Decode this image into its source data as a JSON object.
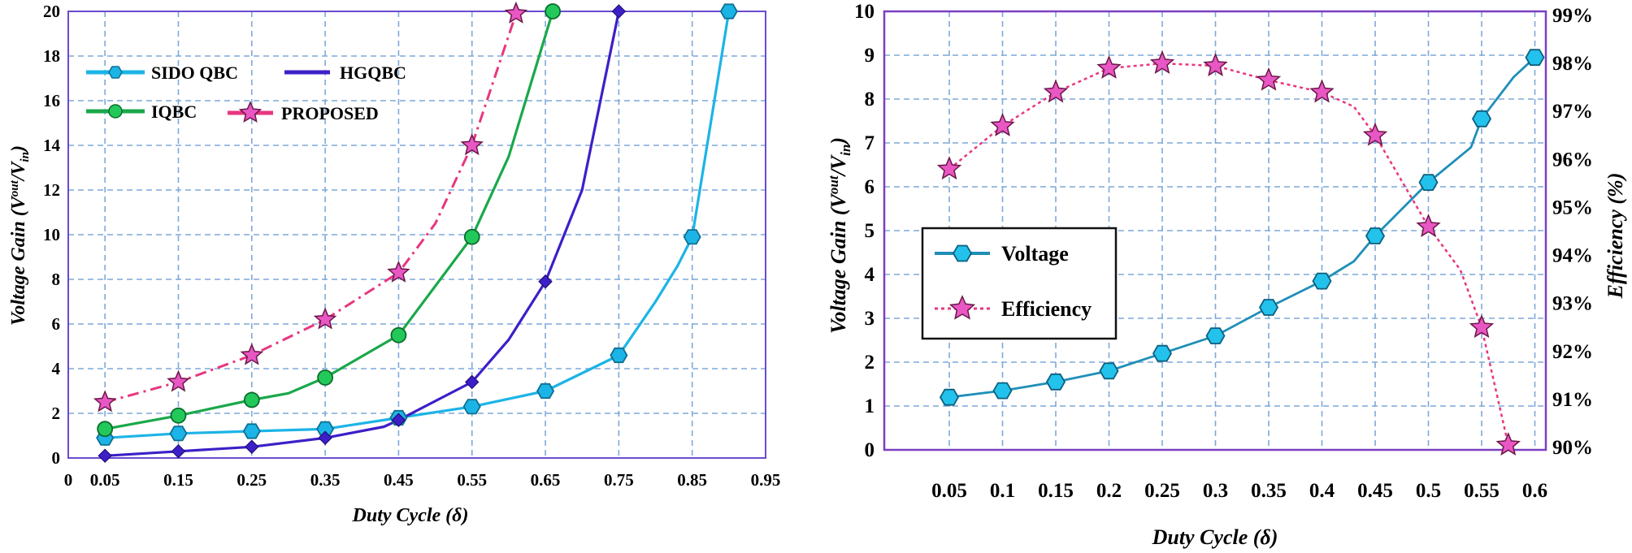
{
  "chart_data": [
    {
      "type": "line",
      "xlabel": "Duty Cycle (δ)",
      "ylabel": "Voltage Gain (V",
      "ylabel_sup": "out",
      "ylabel_sep": "/V",
      "ylabel_sub": "in",
      "ylabel_close": ")",
      "xlim": [
        0,
        0.95
      ],
      "ylim": [
        0,
        20
      ],
      "x_ticks": [
        0,
        0.05,
        0.15,
        0.25,
        0.35,
        0.45,
        0.55,
        0.65,
        0.75,
        0.85,
        0.95
      ],
      "x_tick_labels": [
        "0",
        "0.05",
        "0.15",
        "0.25",
        "0.35",
        "0.45",
        "0.55",
        "0.65",
        "0.75",
        "0.85",
        "0.95"
      ],
      "y_ticks": [
        0,
        2,
        4,
        6,
        8,
        10,
        12,
        14,
        16,
        18,
        20
      ],
      "y_tick_labels": [
        "0",
        "2",
        "4",
        "6",
        "8",
        "10",
        "12",
        "14",
        "16",
        "18",
        "20"
      ],
      "grid": true,
      "legend_position": "top-left",
      "series": [
        {
          "name": "SIDO QBC",
          "color": "#1cb4e6",
          "marker": "hexagon",
          "style": "solid",
          "x": [
            0.05,
            0.15,
            0.25,
            0.35,
            0.45,
            0.55,
            0.65,
            0.75,
            0.85,
            0.9
          ],
          "y": [
            0.9,
            1.1,
            1.2,
            1.3,
            1.8,
            2.3,
            3.0,
            4.6,
            9.9,
            20.0
          ],
          "curve_x": [
            0.05,
            0.15,
            0.25,
            0.35,
            0.45,
            0.55,
            0.65,
            0.75,
            0.8,
            0.83,
            0.85,
            0.9
          ],
          "curve_y": [
            0.9,
            1.1,
            1.2,
            1.3,
            1.8,
            2.3,
            3.0,
            4.6,
            7.0,
            8.6,
            9.9,
            20.0
          ]
        },
        {
          "name": "HGQBC",
          "color": "#3d1fc8",
          "marker": "diamond",
          "style": "solid",
          "x": [
            0.05,
            0.15,
            0.25,
            0.35,
            0.45,
            0.55,
            0.65,
            0.75
          ],
          "y": [
            0.1,
            0.3,
            0.5,
            0.9,
            1.7,
            3.4,
            7.9,
            20.0
          ],
          "curve_x": [
            0.05,
            0.15,
            0.25,
            0.35,
            0.43,
            0.45,
            0.55,
            0.6,
            0.65,
            0.7,
            0.75
          ],
          "curve_y": [
            0.1,
            0.3,
            0.5,
            0.9,
            1.4,
            1.7,
            3.4,
            5.3,
            7.9,
            12.0,
            20.0
          ]
        },
        {
          "name": "IQBC",
          "color": "#1aa84a",
          "marker": "circle",
          "style": "solid",
          "x": [
            0.05,
            0.15,
            0.25,
            0.35,
            0.45,
            0.55,
            0.66
          ],
          "y": [
            1.3,
            1.9,
            2.6,
            3.6,
            5.5,
            9.9,
            20.0
          ],
          "curve_x": [
            0.05,
            0.15,
            0.25,
            0.3,
            0.35,
            0.45,
            0.55,
            0.6,
            0.66
          ],
          "curve_y": [
            1.3,
            1.9,
            2.6,
            2.9,
            3.6,
            5.5,
            9.9,
            13.5,
            20.0
          ]
        },
        {
          "name": "PROPOSED",
          "color": "#e8367f",
          "marker": "star",
          "style": "dashdot",
          "marker_fill": "#e857c4",
          "x": [
            0.05,
            0.15,
            0.25,
            0.35,
            0.45,
            0.55,
            0.61
          ],
          "y": [
            2.5,
            3.4,
            4.6,
            6.2,
            8.3,
            14.0,
            19.9
          ],
          "curve_x": [
            0.05,
            0.15,
            0.25,
            0.35,
            0.45,
            0.5,
            0.55,
            0.61
          ],
          "curve_y": [
            2.5,
            3.4,
            4.6,
            6.2,
            8.3,
            10.5,
            14.0,
            19.9
          ]
        }
      ]
    },
    {
      "type": "line",
      "xlabel": "Duty Cycle (δ)",
      "ylabel": "Voltage Gain (V",
      "ylabel_sup": "out",
      "ylabel_sep": "/V",
      "ylabel_sub": "in",
      "ylabel_close": ")",
      "y2label": "Efficiency (%)",
      "xlim": [
        0,
        0.6
      ],
      "ylim": [
        0,
        10
      ],
      "y2lim": [
        89.8,
        99
      ],
      "x_ticks": [
        0.05,
        0.1,
        0.15,
        0.2,
        0.25,
        0.3,
        0.35,
        0.4,
        0.45,
        0.5,
        0.55,
        0.6
      ],
      "x_tick_labels": [
        "0.05",
        "0.1",
        "0.15",
        "0.2",
        "0.25",
        "0.3",
        "0.35",
        "0.4",
        "0.45",
        "0.5",
        "0.55",
        "0.6"
      ],
      "y_ticks": [
        0,
        1,
        2,
        3,
        4,
        5,
        6,
        7,
        8,
        9,
        10
      ],
      "y_tick_labels": [
        "0",
        "1",
        "2",
        "3",
        "4",
        "5",
        "6",
        "7",
        "8",
        "9",
        "10"
      ],
      "y2_ticks": [
        90,
        91,
        92,
        93,
        94,
        95,
        96,
        97,
        98,
        99
      ],
      "y2_tick_labels": [
        "90%",
        "91%",
        "92%",
        "93%",
        "94%",
        "95%",
        "96%",
        "97%",
        "98%",
        "99%"
      ],
      "grid": true,
      "legend_position": "center-left",
      "series": [
        {
          "name": "Voltage",
          "color": "#1f8fb8",
          "marker": "hexagon",
          "marker_fill": "#22c2ec",
          "style": "solid",
          "axis": "left",
          "x": [
            0.05,
            0.1,
            0.15,
            0.2,
            0.25,
            0.3,
            0.35,
            0.4,
            0.45,
            0.5,
            0.55,
            0.6
          ],
          "y": [
            1.2,
            1.35,
            1.55,
            1.8,
            2.2,
            2.6,
            3.25,
            3.85,
            4.88,
            6.1,
            7.55,
            8.95
          ],
          "curve_x": [
            0.05,
            0.1,
            0.15,
            0.2,
            0.25,
            0.3,
            0.35,
            0.4,
            0.43,
            0.45,
            0.5,
            0.54,
            0.55,
            0.58,
            0.6
          ],
          "curve_y": [
            1.2,
            1.35,
            1.55,
            1.8,
            2.2,
            2.6,
            3.25,
            3.85,
            4.3,
            4.88,
            6.1,
            6.9,
            7.55,
            8.5,
            8.95
          ]
        },
        {
          "name": "Efficiency",
          "color": "#e8367f",
          "marker": "star",
          "marker_fill": "#e857c4",
          "style": "dotted",
          "axis": "right",
          "x": [
            0.05,
            0.1,
            0.15,
            0.2,
            0.25,
            0.3,
            0.35,
            0.4,
            0.45,
            0.5,
            0.55,
            0.575
          ],
          "y": [
            95.8,
            96.7,
            97.4,
            97.9,
            98.0,
            97.95,
            97.65,
            97.4,
            96.5,
            94.6,
            92.5,
            90.05
          ],
          "curve_x": [
            0.05,
            0.1,
            0.15,
            0.2,
            0.25,
            0.3,
            0.35,
            0.4,
            0.43,
            0.45,
            0.5,
            0.53,
            0.55,
            0.575
          ],
          "curve_y": [
            95.8,
            96.7,
            97.4,
            97.9,
            98.0,
            97.95,
            97.65,
            97.4,
            97.1,
            96.5,
            94.6,
            93.7,
            92.5,
            90.05
          ]
        }
      ]
    }
  ]
}
